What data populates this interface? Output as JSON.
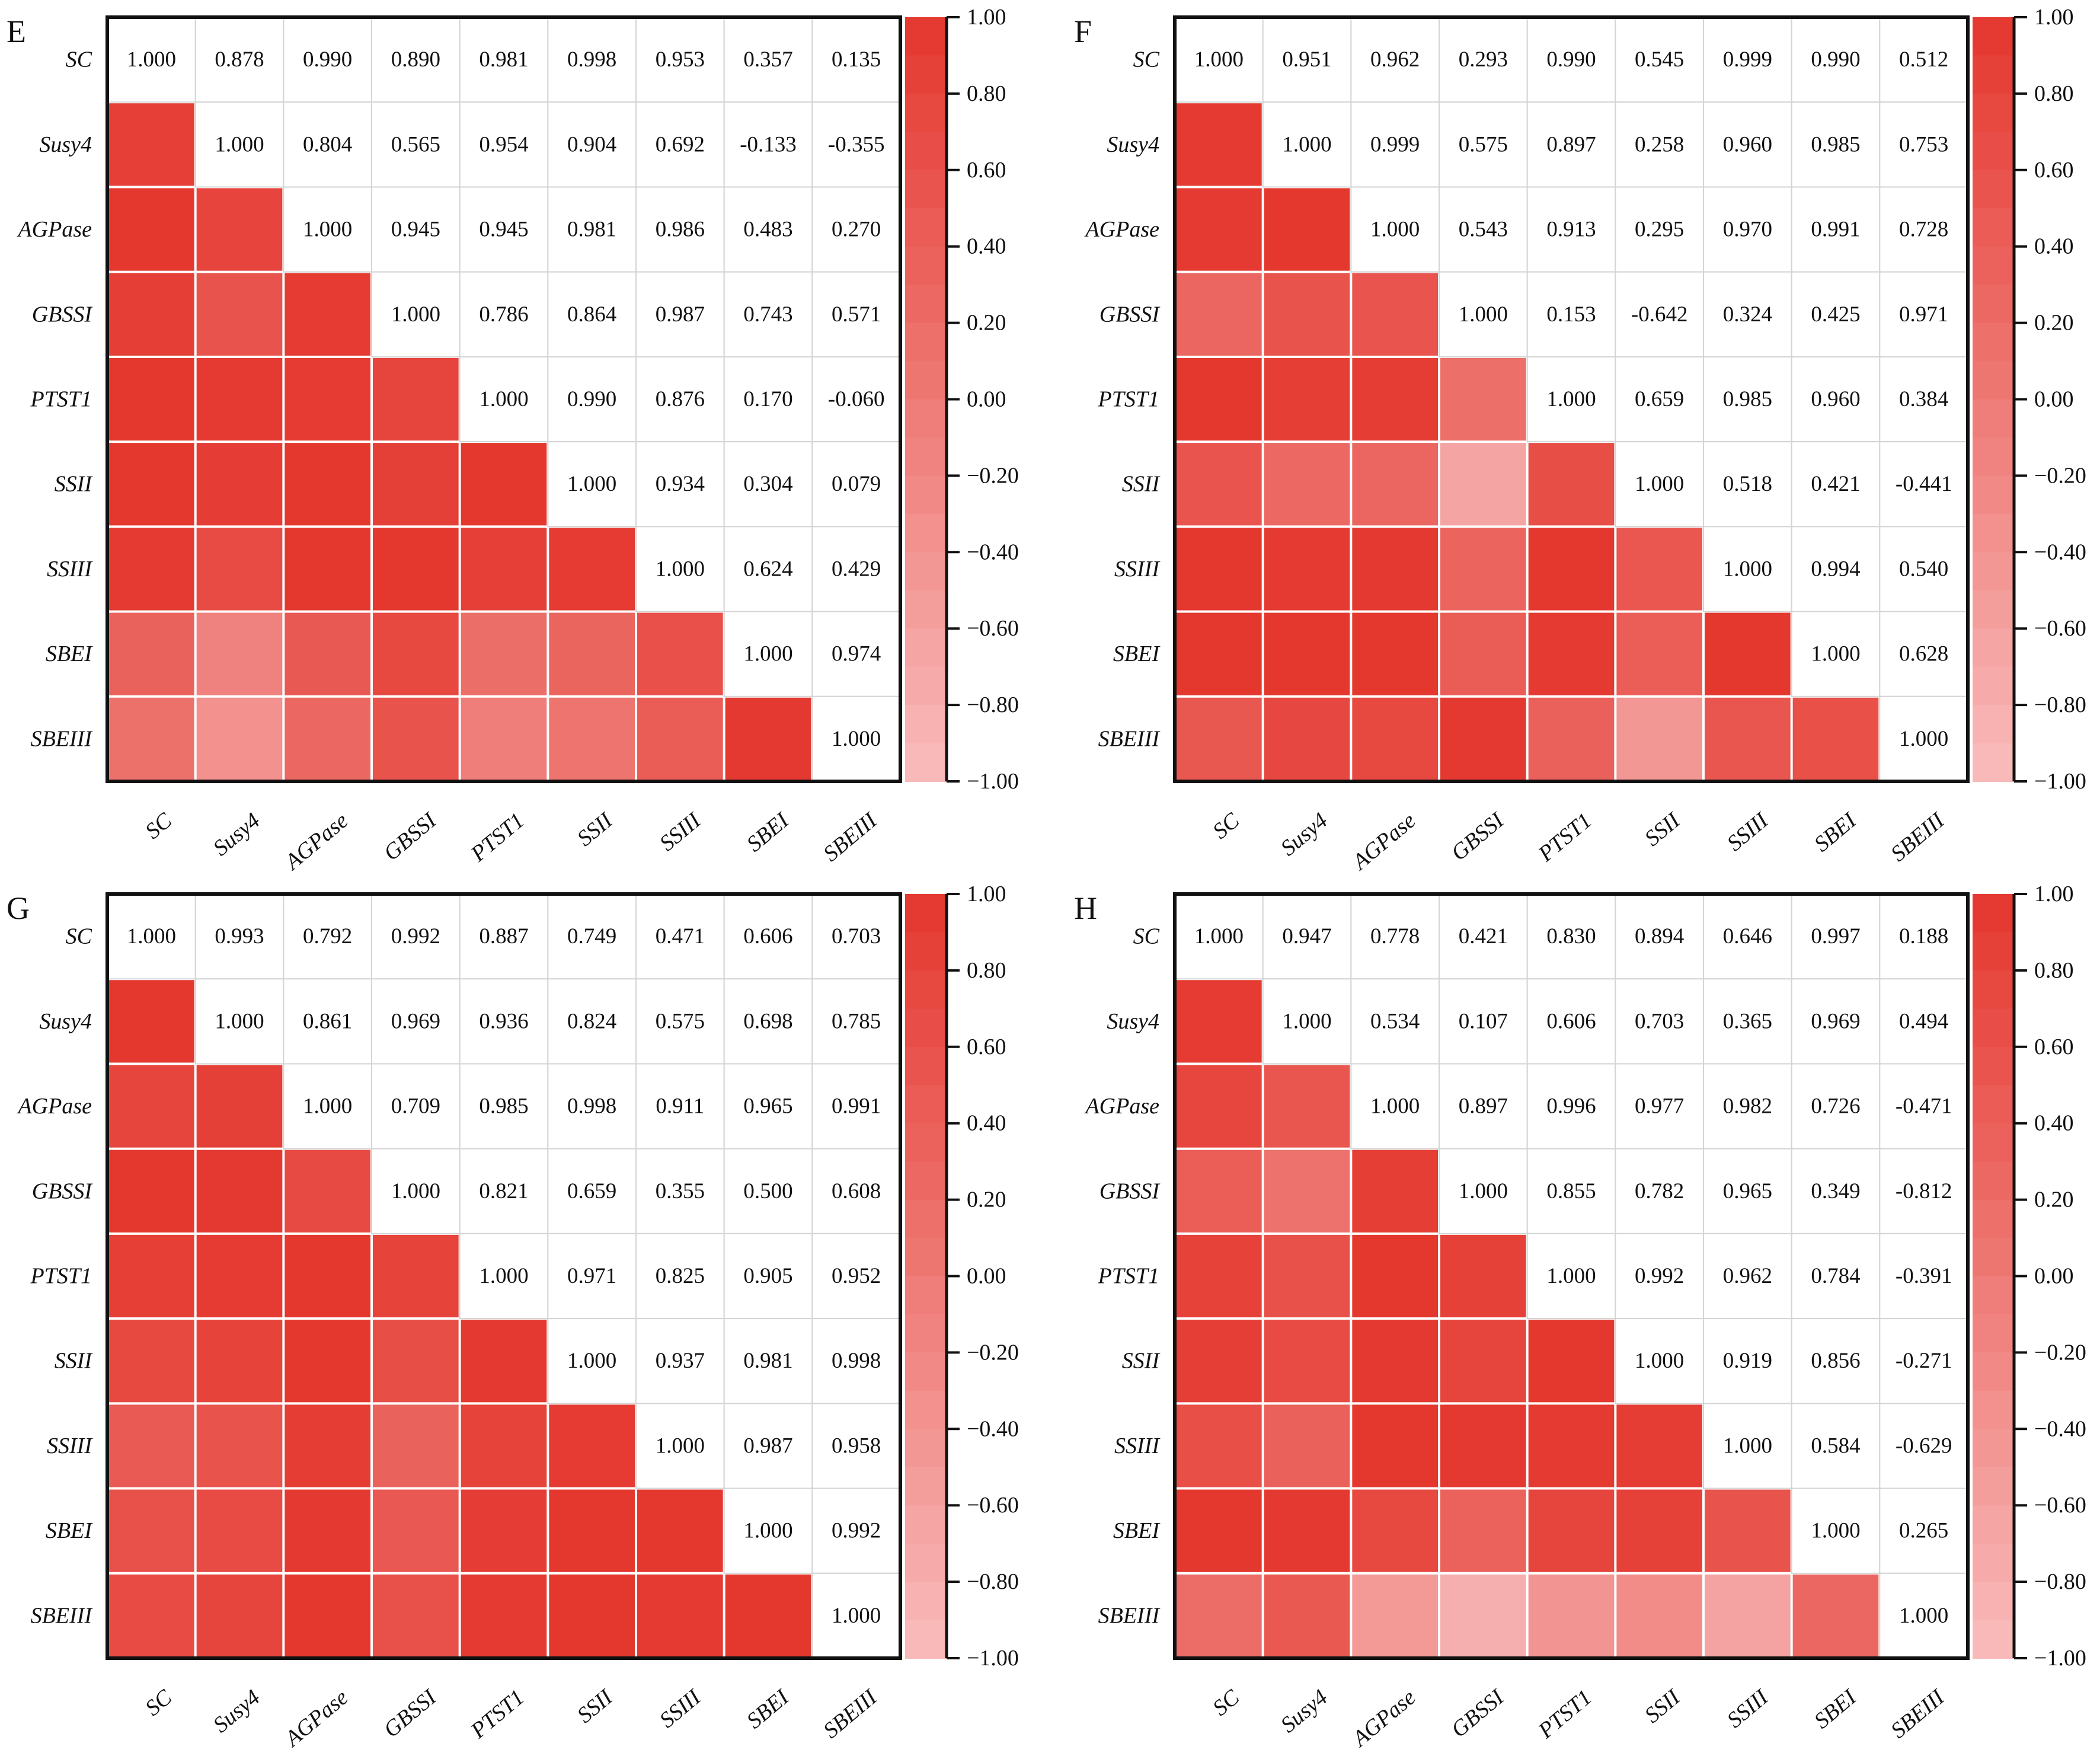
{
  "colors": {
    "high": "#e4372e",
    "low": "#f8bcbc",
    "grid": "#d4d4d4",
    "frame": "#111111"
  },
  "chart_data": [
    {
      "type": "heatmap",
      "panel": "E",
      "labels": [
        "SC",
        "Susy4",
        "AGPase",
        "GBSSI",
        "PTST1",
        "SSII",
        "SSIII",
        "SBEI",
        "SBEIII"
      ],
      "upper_triangle": [
        [
          1.0,
          0.878,
          0.99,
          0.89,
          0.981,
          0.998,
          0.953,
          0.357,
          0.135
        ],
        [
          1.0,
          0.804,
          0.565,
          0.954,
          0.904,
          0.692,
          -0.133,
          -0.355
        ],
        [
          1.0,
          0.945,
          0.945,
          0.981,
          0.986,
          0.483,
          0.27
        ],
        [
          1.0,
          0.786,
          0.864,
          0.987,
          0.743,
          0.571
        ],
        [
          1.0,
          0.99,
          0.876,
          0.17,
          -0.06
        ],
        [
          1.0,
          0.934,
          0.304,
          0.079
        ],
        [
          1.0,
          0.624,
          0.429
        ],
        [
          1.0,
          0.974
        ],
        [
          1.0
        ]
      ],
      "colorbar": {
        "range": [
          -1,
          1
        ],
        "ticks": [
          "1.00",
          "0.80",
          "0.60",
          "0.40",
          "0.20",
          "0.00",
          "−0.20",
          "−0.40",
          "−0.60",
          "−0.80",
          "−1.00"
        ]
      }
    },
    {
      "type": "heatmap",
      "panel": "F",
      "labels": [
        "SC",
        "Susy4",
        "AGPase",
        "GBSSI",
        "PTST1",
        "SSII",
        "SSIII",
        "SBEI",
        "SBEIII"
      ],
      "upper_triangle": [
        [
          1.0,
          0.951,
          0.962,
          0.293,
          0.99,
          0.545,
          0.999,
          0.99,
          0.512
        ],
        [
          1.0,
          0.999,
          0.575,
          0.897,
          0.258,
          0.96,
          0.985,
          0.753
        ],
        [
          1.0,
          0.543,
          0.913,
          0.295,
          0.97,
          0.991,
          0.728
        ],
        [
          1.0,
          0.153,
          -0.642,
          0.324,
          0.425,
          0.971
        ],
        [
          1.0,
          0.659,
          0.985,
          0.96,
          0.384
        ],
        [
          1.0,
          0.518,
          0.421,
          -0.441
        ],
        [
          1.0,
          0.994,
          0.54
        ],
        [
          1.0,
          0.628
        ],
        [
          1.0
        ]
      ],
      "colorbar": {
        "range": [
          -1,
          1
        ],
        "ticks": [
          "1.00",
          "0.80",
          "0.60",
          "0.40",
          "0.20",
          "0.00",
          "−0.20",
          "−0.40",
          "−0.60",
          "−0.80",
          "−1.00"
        ]
      }
    },
    {
      "type": "heatmap",
      "panel": "G",
      "labels": [
        "SC",
        "Susy4",
        "AGPase",
        "GBSSI",
        "PTST1",
        "SSII",
        "SSIII",
        "SBEI",
        "SBEIII"
      ],
      "upper_triangle": [
        [
          1.0,
          0.993,
          0.792,
          0.992,
          0.887,
          0.749,
          0.471,
          0.606,
          0.703
        ],
        [
          1.0,
          0.861,
          0.969,
          0.936,
          0.824,
          0.575,
          0.698,
          0.785
        ],
        [
          1.0,
          0.709,
          0.985,
          0.998,
          0.911,
          0.965,
          0.991
        ],
        [
          1.0,
          0.821,
          0.659,
          0.355,
          0.5,
          0.608
        ],
        [
          1.0,
          0.971,
          0.825,
          0.905,
          0.952
        ],
        [
          1.0,
          0.937,
          0.981,
          0.998
        ],
        [
          1.0,
          0.987,
          0.958
        ],
        [
          1.0,
          0.992
        ],
        [
          1.0
        ]
      ],
      "colorbar": {
        "range": [
          -1,
          1
        ],
        "ticks": [
          "1.00",
          "0.80",
          "0.60",
          "0.40",
          "0.20",
          "0.00",
          "−0.20",
          "−0.40",
          "−0.60",
          "−0.80",
          "−1.00"
        ]
      }
    },
    {
      "type": "heatmap",
      "panel": "H",
      "labels": [
        "SC",
        "Susy4",
        "AGPase",
        "GBSSI",
        "PTST1",
        "SSII",
        "SSIII",
        "SBEI",
        "SBEIII"
      ],
      "upper_triangle": [
        [
          1.0,
          0.947,
          0.778,
          0.421,
          0.83,
          0.894,
          0.646,
          0.997,
          0.188
        ],
        [
          1.0,
          0.534,
          0.107,
          0.606,
          0.703,
          0.365,
          0.969,
          0.494
        ],
        [
          1.0,
          0.897,
          0.996,
          0.977,
          0.982,
          0.726,
          -0.471
        ],
        [
          1.0,
          0.855,
          0.782,
          0.965,
          0.349,
          -0.812
        ],
        [
          1.0,
          0.992,
          0.962,
          0.784,
          -0.391
        ],
        [
          1.0,
          0.919,
          0.856,
          -0.271
        ],
        [
          1.0,
          0.584,
          -0.629
        ],
        [
          1.0,
          0.265
        ],
        [
          1.0
        ]
      ],
      "colorbar": {
        "range": [
          -1,
          1
        ],
        "ticks": [
          "1.00",
          "0.80",
          "0.60",
          "0.40",
          "0.20",
          "0.00",
          "−0.20",
          "−0.40",
          "−0.60",
          "−0.80",
          "−1.00"
        ]
      }
    }
  ]
}
